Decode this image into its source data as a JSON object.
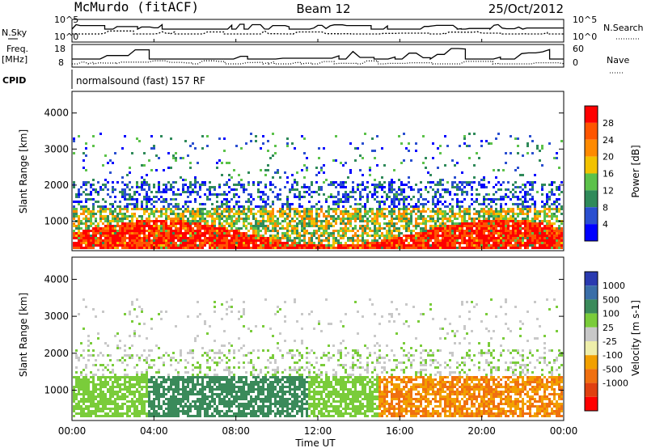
{
  "header": {
    "station": "McMurdo (fitACF)",
    "beam": "Beam 12",
    "date": "25/Oct/2012",
    "cpid_label": "CPID",
    "cpid_value": "normalsound (fast) 157 RF"
  },
  "top_panels": {
    "nsky_label": "N.Sky",
    "nsky_ticks": [
      "10^5",
      "10^0"
    ],
    "nsearch_label": "N.Search",
    "nsearch_ticks": [
      "10^5",
      "10^0"
    ],
    "freq_label": "Freq.",
    "freq_unit": "[MHz]",
    "freq_ticks": [
      "18",
      "8"
    ],
    "nave_label": "Nave",
    "nave_ticks": [
      "60",
      "0"
    ]
  },
  "colors": {
    "power": [
      "#0000ff",
      "#2a4fd0",
      "#2f8a5a",
      "#5cc24a",
      "#f2c200",
      "#ff8a00",
      "#ff5500",
      "#ff0000"
    ],
    "velocity": [
      "#2a3ab0",
      "#3a6ea8",
      "#3a8a5a",
      "#7acc3a",
      "#c8c8c8",
      "#eeeeaa",
      "#f2a000",
      "#f07010",
      "#e04010",
      "#ff0000"
    ]
  },
  "chart_data": [
    {
      "type": "heatmap",
      "title": "",
      "xlabel": "",
      "ylabel": "Slant Range [km]",
      "xlim": [
        "00:00",
        "00:00"
      ],
      "ylim": [
        180,
        4600
      ],
      "x_ticks": [
        "00:00",
        "04:00",
        "08:00",
        "12:00",
        "16:00",
        "20:00",
        "00:00"
      ],
      "y_ticks": [
        "1000",
        "2000",
        "3000",
        "4000"
      ],
      "colorbar_label": "Power [dB]",
      "colorbar_ticks": [
        "4",
        "8",
        "12",
        "16",
        "20",
        "24",
        "28"
      ],
      "colorbar_range": [
        0,
        32
      ]
    },
    {
      "type": "heatmap",
      "title": "",
      "xlabel": "Time UT",
      "ylabel": "Slant Range [km]",
      "xlim": [
        "00:00",
        "00:00"
      ],
      "ylim": [
        180,
        4600
      ],
      "x_ticks": [
        "00:00",
        "04:00",
        "08:00",
        "12:00",
        "16:00",
        "20:00",
        "00:00"
      ],
      "y_ticks": [
        "1000",
        "2000",
        "3000",
        "4000"
      ],
      "colorbar_label": "Velocity [m s-1]",
      "colorbar_ticks": [
        "1000",
        "500",
        "100",
        "25",
        "-25",
        "-100",
        "-500",
        "-1000"
      ]
    }
  ]
}
